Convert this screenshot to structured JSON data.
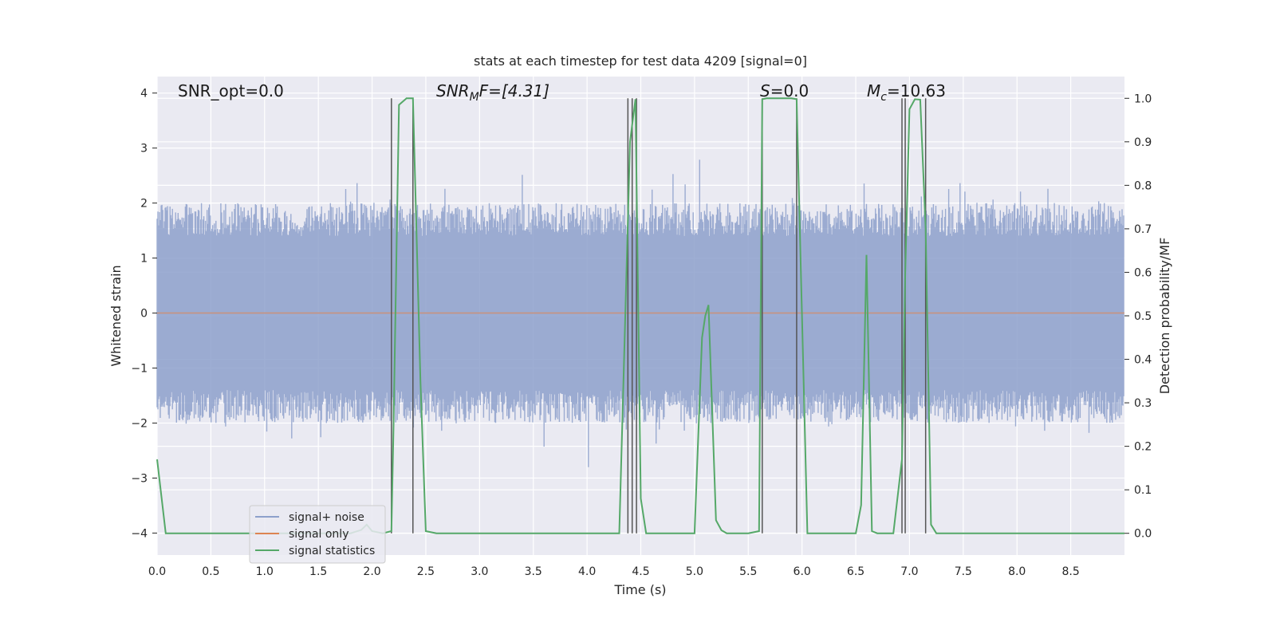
{
  "chart_data": {
    "type": "line",
    "title": "stats at each timestep for test data 4209 [signal=0]",
    "xlabel": "Time (s)",
    "ylabel_left": "Whitened strain",
    "ylabel_right": "Detection probability/MF",
    "xlim": [
      0.0,
      9.0
    ],
    "ylim_left": [
      -4.4,
      4.3
    ],
    "ylim_right": [
      -0.05,
      1.05
    ],
    "x_ticks": [
      "0.0",
      "0.5",
      "1.0",
      "1.5",
      "2.0",
      "2.5",
      "3.0",
      "3.5",
      "4.0",
      "4.5",
      "5.0",
      "5.5",
      "6.0",
      "6.5",
      "7.0",
      "7.5",
      "8.0",
      "8.5"
    ],
    "y_ticks_left": [
      "4",
      "3",
      "2",
      "1",
      "0",
      "−1",
      "−2",
      "−3",
      "−4"
    ],
    "y_ticks_right": [
      "1.0",
      "0.9",
      "0.8",
      "0.7",
      "0.6",
      "0.5",
      "0.4",
      "0.3",
      "0.2",
      "0.1",
      "0.0"
    ],
    "grid": true,
    "legend_position": "lower-left",
    "annotations": {
      "snr_opt": "SNR_opt=0.0",
      "snr_mf_main": "SNR",
      "snr_mf_sub": "M",
      "snr_mf_rest": "F=[4.31]",
      "s_main": "S",
      "s_rest": "=0.0",
      "mc_main": "M",
      "mc_sub": "c",
      "mc_rest": "=10.63"
    },
    "series": [
      {
        "name": "signal+ noise",
        "color": "#8da0cb",
        "note": "dense whitened noise trace, approx. between -3.5 and 3.6 whitened strain units"
      },
      {
        "name": "signal only",
        "color": "#dd8452",
        "values_constant": 0.0
      },
      {
        "name": "signal statistics",
        "color": "#55a868",
        "x": [
          0.0,
          0.08,
          0.15,
          0.3,
          1.0,
          1.8,
          1.9,
          1.95,
          2.0,
          2.1,
          2.18,
          2.2,
          2.25,
          2.32,
          2.38,
          2.45,
          2.5,
          2.6,
          3.0,
          4.0,
          4.3,
          4.35,
          4.4,
          4.45,
          4.5,
          4.55,
          4.7,
          5.0,
          5.07,
          5.1,
          5.13,
          5.2,
          5.25,
          5.3,
          5.5,
          5.6,
          5.63,
          5.67,
          5.9,
          5.95,
          6.05,
          6.5,
          6.55,
          6.6,
          6.65,
          6.7,
          6.85,
          6.93,
          6.96,
          7.0,
          7.05,
          7.1,
          7.15,
          7.2,
          7.25,
          7.3,
          7.5,
          8.0,
          9.0
        ],
        "y": [
          0.17,
          0.0,
          0.0,
          0.0,
          0.0,
          0.0,
          0.008,
          0.02,
          0.005,
          0.0,
          0.005,
          0.25,
          0.985,
          1.0,
          1.0,
          0.35,
          0.005,
          0.0,
          0.0,
          0.0,
          0.0,
          0.45,
          0.9,
          0.998,
          0.08,
          0.0,
          0.0,
          0.0,
          0.45,
          0.5,
          0.525,
          0.03,
          0.007,
          0.0,
          0.0,
          0.005,
          0.998,
          1.0,
          1.0,
          0.998,
          0.0,
          0.0,
          0.065,
          0.64,
          0.005,
          0.0,
          0.0,
          0.17,
          0.6,
          0.975,
          0.998,
          0.997,
          0.7,
          0.02,
          0.0,
          0.0,
          0.0,
          0.0,
          0.0
        ]
      }
    ],
    "event_markers_x": [
      2.18,
      2.38,
      4.38,
      4.42,
      4.46,
      5.63,
      5.95,
      6.93,
      6.96,
      7.15
    ]
  }
}
